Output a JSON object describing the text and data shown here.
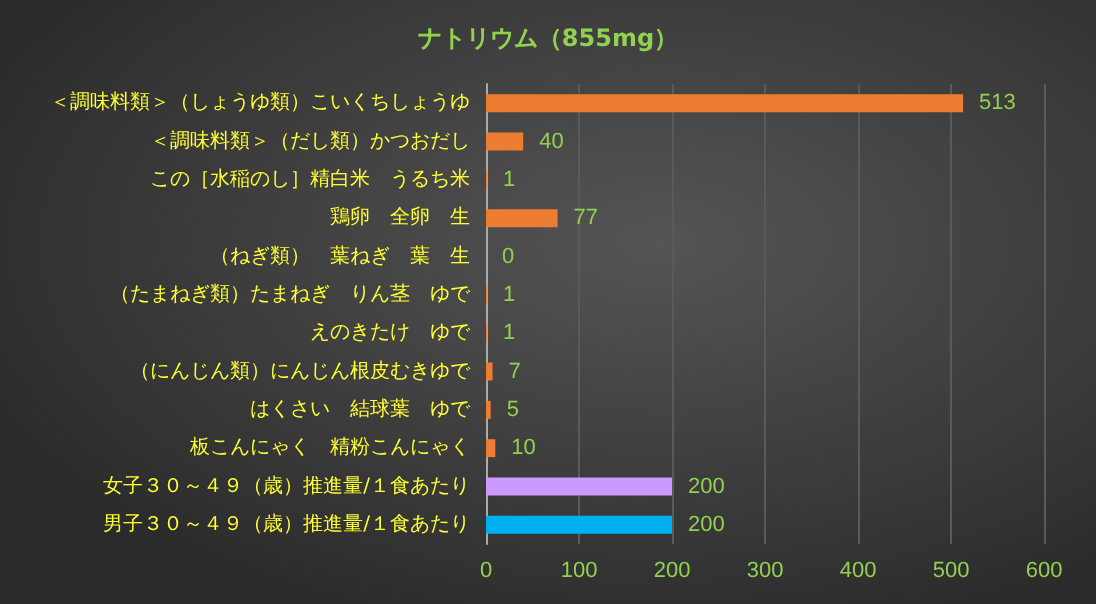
{
  "chart_data": {
    "type": "bar",
    "orientation": "horizontal",
    "title": "ナトリウム（855mg）",
    "categories": [
      "＜調味料類＞（しょうゆ類）こいくちしょうゆ",
      "＜調味料類＞（だし類）かつおだし",
      "この［水稲のし］精白米　うるち米",
      "鶏卵　全卵　生",
      "（ねぎ類）　葉ねぎ　葉　生",
      "（たまねぎ類）たまねぎ　りん茎　ゆで",
      "えのきたけ　ゆで",
      "（にんじん類）にんじん根皮むきゆで",
      "はくさい　結球葉　ゆで",
      "板こんにゃく　精粉こんにゃく",
      "女子３０～４９（歳）推進量/１食あたり",
      "男子３０～４９（歳）推進量/１食あたり"
    ],
    "values": [
      513,
      40,
      1,
      77,
      0,
      1,
      1,
      7,
      5,
      10,
      200,
      200
    ],
    "colors": [
      "#ed7d31",
      "#ed7d31",
      "#ed7d31",
      "#ed7d31",
      "#ed7d31",
      "#ed7d31",
      "#ed7d31",
      "#ed7d31",
      "#ed7d31",
      "#ed7d31",
      "#cc99ff",
      "#00b0f0"
    ],
    "xlim": [
      0,
      600
    ],
    "xticks": [
      0,
      100,
      200,
      300,
      400,
      500,
      600
    ],
    "grid": "x",
    "data_labels": true
  }
}
